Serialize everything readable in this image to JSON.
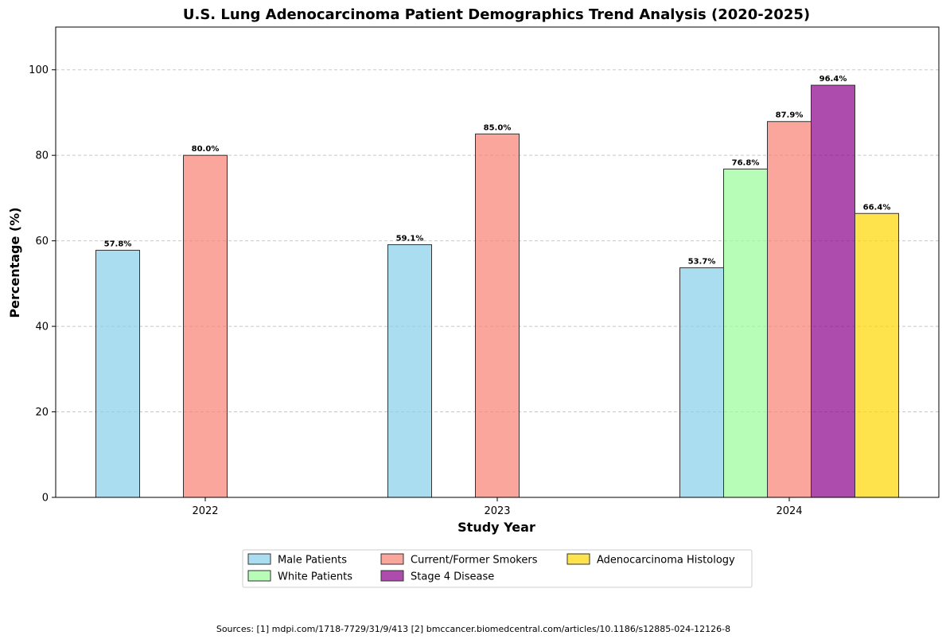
{
  "chart_data": {
    "type": "bar",
    "title": "U.S. Lung Adenocarcinoma Patient Demographics Trend Analysis (2020-2025)",
    "xlabel": "Study Year",
    "ylabel": "Percentage (%)",
    "ylim": [
      0,
      110
    ],
    "yticks": [
      0,
      20,
      40,
      60,
      80,
      100
    ],
    "grid": "y-dashed",
    "legend_position": "bottom-center",
    "categories": [
      "2022",
      "2023",
      "2024"
    ],
    "series": [
      {
        "name": "Male Patients",
        "color": "#87CEEB",
        "values": [
          57.8,
          59.1,
          53.7
        ],
        "labels": [
          "57.8%",
          "59.1%",
          "53.7%"
        ]
      },
      {
        "name": "White Patients",
        "color": "#98FB98",
        "values": [
          0,
          0,
          76.8
        ],
        "labels": [
          "",
          "",
          "76.8%"
        ]
      },
      {
        "name": "Current/Former Smokers",
        "color": "#FA8072",
        "values": [
          80.0,
          85.0,
          87.9
        ],
        "labels": [
          "80.0%",
          "85.0%",
          "87.9%"
        ]
      },
      {
        "name": "Stage 4 Disease",
        "color": "#8B008B",
        "values": [
          0,
          0,
          96.4
        ],
        "labels": [
          "",
          "",
          "96.4%"
        ]
      },
      {
        "name": "Adenocarcinoma Histology",
        "color": "#FFD700",
        "values": [
          0,
          0,
          66.4
        ],
        "labels": [
          "",
          "",
          "66.4%"
        ]
      }
    ]
  },
  "footer": {
    "sources": "Sources: [1] mdpi.com/1718-7729/31/9/413 [2] bmccancer.biomedcentral.com/articles/10.1186/s12885-024-12126-8"
  }
}
